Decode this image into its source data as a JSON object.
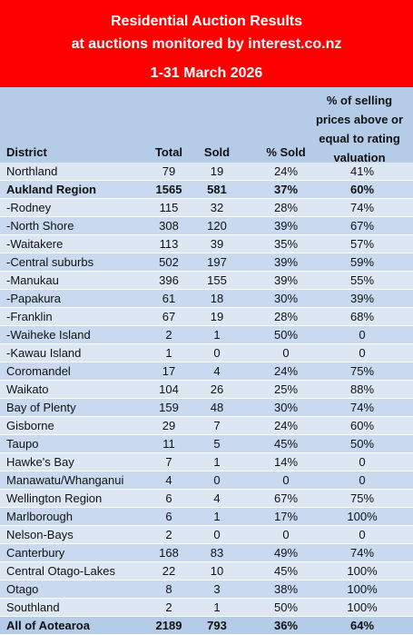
{
  "banner": {
    "line1": "Residential Auction Results",
    "line2": "at auctions monitored by interest.co.nz",
    "line3": "1-31 March 2026",
    "background": "#ff0000"
  },
  "table": {
    "headers": {
      "district": "District",
      "total": "Total",
      "sold": "Sold",
      "pct_sold": "% Sold",
      "pct_above_line1": "% of selling",
      "pct_above_line2": "prices above or",
      "pct_above_line3": "equal to rating",
      "pct_above_line4": "valuation"
    },
    "rows": [
      {
        "district": "Northland",
        "total": "79",
        "sold": "19",
        "pct_sold": "24%",
        "pct_above": "41%"
      },
      {
        "district": "Aukland Region",
        "total": "1565",
        "sold": "581",
        "pct_sold": "37%",
        "pct_above": "60%"
      },
      {
        "district": "-Rodney",
        "total": "115",
        "sold": "32",
        "pct_sold": "28%",
        "pct_above": "74%"
      },
      {
        "district": "-North Shore",
        "total": "308",
        "sold": "120",
        "pct_sold": "39%",
        "pct_above": "67%"
      },
      {
        "district": "-Waitakere",
        "total": "113",
        "sold": "39",
        "pct_sold": "35%",
        "pct_above": "57%"
      },
      {
        "district": "-Central suburbs",
        "total": "502",
        "sold": "197",
        "pct_sold": "39%",
        "pct_above": "59%"
      },
      {
        "district": "-Manukau",
        "total": "396",
        "sold": "155",
        "pct_sold": "39%",
        "pct_above": "55%"
      },
      {
        "district": "-Papakura",
        "total": "61",
        "sold": "18",
        "pct_sold": "30%",
        "pct_above": "39%"
      },
      {
        "district": "-Franklin",
        "total": "67",
        "sold": "19",
        "pct_sold": "28%",
        "pct_above": "68%"
      },
      {
        "district": "-Waiheke Island",
        "total": "2",
        "sold": "1",
        "pct_sold": "50%",
        "pct_above": "0"
      },
      {
        "district": "-Kawau Island",
        "total": "1",
        "sold": "0",
        "pct_sold": "0",
        "pct_above": "0"
      },
      {
        "district": "Coromandel",
        "total": "17",
        "sold": "4",
        "pct_sold": "24%",
        "pct_above": "75%"
      },
      {
        "district": "Waikato",
        "total": "104",
        "sold": "26",
        "pct_sold": "25%",
        "pct_above": "88%"
      },
      {
        "district": "Bay of Plenty",
        "total": "159",
        "sold": "48",
        "pct_sold": "30%",
        "pct_above": "74%"
      },
      {
        "district": "Gisborne",
        "total": "29",
        "sold": "7",
        "pct_sold": "24%",
        "pct_above": "60%"
      },
      {
        "district": "Taupo",
        "total": "11",
        "sold": "5",
        "pct_sold": "45%",
        "pct_above": "50%"
      },
      {
        "district": "Hawke's Bay",
        "total": "7",
        "sold": "1",
        "pct_sold": "14%",
        "pct_above": "0"
      },
      {
        "district": "Manawatu/Whanganui",
        "total": "4",
        "sold": "0",
        "pct_sold": "0",
        "pct_above": "0"
      },
      {
        "district": "Wellington Region",
        "total": "6",
        "sold": "4",
        "pct_sold": "67%",
        "pct_above": "75%"
      },
      {
        "district": "Marlborough",
        "total": "6",
        "sold": "1",
        "pct_sold": "17%",
        "pct_above": "100%"
      },
      {
        "district": "Nelson-Bays",
        "total": "2",
        "sold": "0",
        "pct_sold": "0",
        "pct_above": "0"
      },
      {
        "district": "Canterbury",
        "total": "168",
        "sold": "83",
        "pct_sold": "49%",
        "pct_above": "74%"
      },
      {
        "district": "Central Otago-Lakes",
        "total": "22",
        "sold": "10",
        "pct_sold": "45%",
        "pct_above": "100%"
      },
      {
        "district": "Otago",
        "total": "8",
        "sold": "3",
        "pct_sold": "38%",
        "pct_above": "100%"
      },
      {
        "district": "Southland",
        "total": "2",
        "sold": "1",
        "pct_sold": "50%",
        "pct_above": "100%"
      }
    ],
    "total_row": {
      "district": "All of Aotearoa",
      "total": "2189",
      "sold": "793",
      "pct_sold": "36%",
      "pct_above": "64%"
    },
    "colors": {
      "header": "#b5cce9",
      "row_light": "#dde7f4",
      "row_mid": "#c9daf0"
    }
  }
}
